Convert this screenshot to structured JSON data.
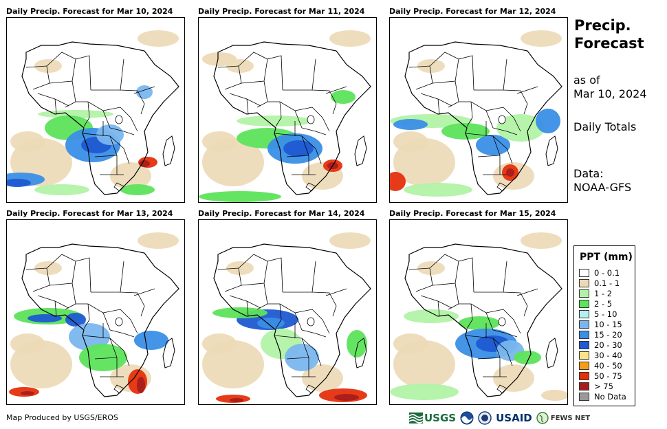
{
  "panels": [
    {
      "title": "Daily Precip. Forecast for Mar 10, 2024"
    },
    {
      "title": "Daily Precip. Forecast for Mar 11, 2024"
    },
    {
      "title": "Daily Precip. Forecast for Mar 12, 2024"
    },
    {
      "title": "Daily Precip. Forecast for Mar 13, 2024"
    },
    {
      "title": "Daily Precip. Forecast for Mar 14, 2024"
    },
    {
      "title": "Daily Precip. Forecast for Mar 15, 2024"
    }
  ],
  "side": {
    "title_line1": "Precip.",
    "title_line2": "Forecast",
    "asof_line1": "as of",
    "asof_line2": "Mar 10, 2024",
    "totals": "Daily Totals",
    "data_line1": "Data:",
    "data_line2": "NOAA-GFS"
  },
  "legend": {
    "title": "PPT (mm)",
    "items": [
      {
        "label": "0 - 0.1",
        "color": "#ffffff"
      },
      {
        "label": "0.1 - 1",
        "color": "#ecd9b5"
      },
      {
        "label": "1 - 2",
        "color": "#b2f2a6"
      },
      {
        "label": "2 - 5",
        "color": "#5de35c"
      },
      {
        "label": "5 - 10",
        "color": "#b5f0f0"
      },
      {
        "label": "10 - 15",
        "color": "#7ab6ee"
      },
      {
        "label": "15 - 20",
        "color": "#3a8ee6"
      },
      {
        "label": "20 - 30",
        "color": "#1f5ad2"
      },
      {
        "label": "30 - 40",
        "color": "#fde28a"
      },
      {
        "label": "40 - 50",
        "color": "#f59d14"
      },
      {
        "label": "50 - 75",
        "color": "#e5300c"
      },
      {
        "label": "> 75",
        "color": "#a61c1c"
      },
      {
        "label": "No Data",
        "color": "#999999"
      }
    ]
  },
  "credit": "Map Produced by USGS/EROS",
  "logos": {
    "usgs": "USGS",
    "usaid": "USAID",
    "fewsnet": "FEWS NET"
  }
}
